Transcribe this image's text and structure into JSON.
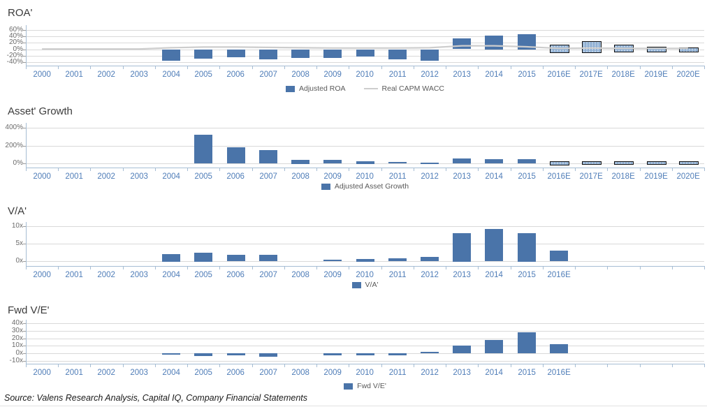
{
  "source_note": "Source: Valens Research Analysis, Capital IQ, Company Financial Statements",
  "colors": {
    "bar": "#4a74a9",
    "estimate_bar_fill": "#8fafd3",
    "estimate_bar_border": "#111111",
    "wacc_line": "#cdcdcd",
    "grid": "#d9d9d9",
    "axis": "#a6bdd4",
    "year_label": "#4f7db8",
    "y_tick_label": "#6b6b6b",
    "legend_text": "#595959",
    "title_text": "#3b3b3b"
  },
  "chart_data": [
    {
      "type": "bar",
      "title": "ROA'",
      "categories": [
        "2000",
        "2001",
        "2002",
        "2003",
        "2004",
        "2005",
        "2006",
        "2007",
        "2008",
        "2009",
        "2010",
        "2011",
        "2012",
        "2013",
        "2014",
        "2015",
        "2016E",
        "2017E",
        "2018E",
        "2019E",
        "2020E"
      ],
      "x_labels": [
        "2000",
        "2001",
        "2002",
        "2003",
        "2004",
        "2005",
        "2006",
        "2007",
        "2008",
        "2009",
        "2010",
        "2011",
        "2012",
        "2013",
        "2014",
        "2015",
        "2016E",
        "2017E",
        "2018E",
        "2019E",
        "2020E"
      ],
      "series": [
        {
          "name": "Adjusted ROA",
          "type": "bar",
          "values": [
            null,
            null,
            null,
            null,
            -35,
            -27,
            -23,
            -29,
            -26,
            -25,
            -21,
            -30,
            -34,
            33,
            42,
            47,
            [
              -6,
              15
            ],
            [
              -7,
              25
            ],
            [
              -5,
              14
            ],
            [
              -3,
              9
            ],
            [
              -5,
              5
            ]
          ]
        },
        {
          "name": "Real CAPM WACC",
          "type": "line",
          "values": [
            1,
            1,
            1,
            1,
            5,
            7,
            7,
            6,
            5,
            4,
            4,
            4,
            5,
            11,
            11,
            8,
            3,
            4,
            3,
            3,
            3
          ]
        }
      ],
      "unit": "%",
      "yticks": [
        {
          "v": 60,
          "t": "60%"
        },
        {
          "v": 40,
          "t": "40%"
        },
        {
          "v": 20,
          "t": "20%"
        },
        {
          "v": 0,
          "t": "0%"
        },
        {
          "v": -20,
          "t": "-20%"
        },
        {
          "v": -40,
          "t": "-40%"
        }
      ],
      "ylim": [
        -50,
        74.5
      ],
      "estimate_bars_outlined": true,
      "grid": true,
      "legend_position": "bottom"
    },
    {
      "type": "bar",
      "title": "Asset' Growth",
      "categories": [
        "2000",
        "2001",
        "2002",
        "2003",
        "2004",
        "2005",
        "2006",
        "2007",
        "2008",
        "2009",
        "2010",
        "2011",
        "2012",
        "2013",
        "2014",
        "2015",
        "2016E",
        "2017E",
        "2018E",
        "2019E",
        "2020E"
      ],
      "x_labels": [
        "2000",
        "2001",
        "2002",
        "2003",
        "2004",
        "2005",
        "2006",
        "2007",
        "2008",
        "2009",
        "2010",
        "2011",
        "2012",
        "2013",
        "2014",
        "2015",
        "2016E",
        "2017E",
        "2018E",
        "2019E",
        "2020E"
      ],
      "series": [
        {
          "name": "Adjusted Asset Growth",
          "type": "bar",
          "values": [
            null,
            null,
            null,
            null,
            null,
            320,
            180,
            150,
            45,
            38,
            28,
            18,
            8,
            55,
            50,
            50,
            28,
            27,
            23,
            22,
            22
          ]
        }
      ],
      "unit": "%",
      "yticks": [
        {
          "v": 400,
          "t": "400%"
        },
        {
          "v": 200,
          "t": "200%"
        },
        {
          "v": 0,
          "t": "0%"
        }
      ],
      "ylim": [
        -44,
        452
      ],
      "estimate_bars_outlined": true,
      "grid": true,
      "legend_position": "bottom"
    },
    {
      "type": "bar",
      "title": "V/A'",
      "categories": [
        "2000",
        "2001",
        "2002",
        "2003",
        "2004",
        "2005",
        "2006",
        "2007",
        "2008",
        "2009",
        "2010",
        "2011",
        "2012",
        "2013",
        "2014",
        "2015",
        "2016E",
        "2017E",
        "2018E",
        "2019E",
        "2020E"
      ],
      "x_labels": [
        "2000",
        "2001",
        "2002",
        "2003",
        "2004",
        "2005",
        "2006",
        "2007",
        "2008",
        "2009",
        "2010",
        "2011",
        "2012",
        "2013",
        "2014",
        "2015",
        "2016E"
      ],
      "series": [
        {
          "name": "V/A'",
          "type": "bar",
          "values": [
            null,
            null,
            null,
            null,
            2.1,
            2.5,
            1.8,
            1.8,
            null,
            0.4,
            0.7,
            0.8,
            1.2,
            8.1,
            9.2,
            8.1,
            3.0,
            null,
            null,
            null,
            null
          ]
        }
      ],
      "unit": "x",
      "yticks": [
        {
          "v": 10,
          "t": "10x"
        },
        {
          "v": 5,
          "t": "5x"
        },
        {
          "v": 0,
          "t": "0x"
        }
      ],
      "ylim": [
        -1.34,
        11.26
      ],
      "estimate_bars_outlined": false,
      "grid": true,
      "legend_position": "bottom"
    },
    {
      "type": "bar",
      "title": "Fwd V/E'",
      "categories": [
        "2000",
        "2001",
        "2002",
        "2003",
        "2004",
        "2005",
        "2006",
        "2007",
        "2008",
        "2009",
        "2010",
        "2011",
        "2012",
        "2013",
        "2014",
        "2015",
        "2016E",
        "2017E",
        "2018E",
        "2019E",
        "2020E"
      ],
      "x_labels": [
        "2000",
        "2001",
        "2002",
        "2003",
        "2004",
        "2005",
        "2006",
        "2007",
        "2008",
        "2009",
        "2010",
        "2011",
        "2012",
        "2013",
        "2014",
        "2015",
        "2016E"
      ],
      "series": [
        {
          "name": "Fwd V/E'",
          "type": "bar",
          "values": [
            null,
            null,
            null,
            null,
            -2,
            -4,
            -3,
            -5,
            null,
            -3,
            -3,
            -3,
            2,
            10,
            18,
            28,
            12,
            null,
            null,
            null,
            null
          ]
        }
      ],
      "unit": "x",
      "yticks": [
        {
          "v": 40,
          "t": "40x"
        },
        {
          "v": 30,
          "t": "30x"
        },
        {
          "v": 20,
          "t": "20x"
        },
        {
          "v": 10,
          "t": "10x"
        },
        {
          "v": 0,
          "t": "0x"
        },
        {
          "v": -10,
          "t": "-10x"
        }
      ],
      "ylim": [
        -14,
        45
      ],
      "estimate_bars_outlined": false,
      "grid": true,
      "legend_position": "bottom"
    }
  ]
}
